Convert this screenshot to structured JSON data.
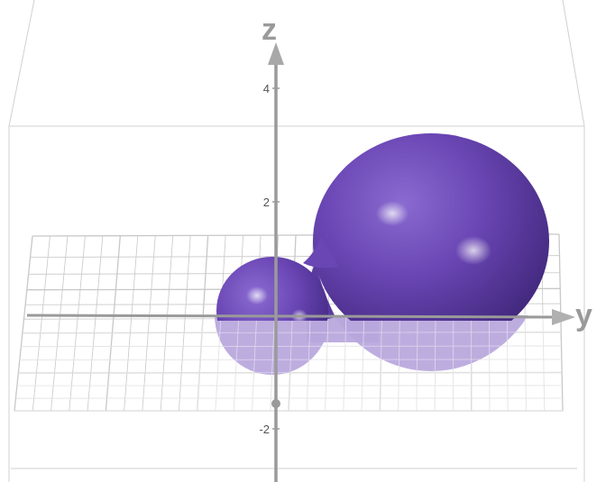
{
  "axes": {
    "z_label": "z",
    "y_label": "y",
    "z_ticks": [
      {
        "value": 4,
        "label": "4"
      },
      {
        "value": 2,
        "label": "2"
      },
      {
        "value": -2,
        "label": "-2"
      }
    ]
  },
  "surface": {
    "color_top": "#6a46b4",
    "color_below_plane": "#b7a6dc",
    "grid_color": "#c8c8c8",
    "axis_color": "#9a9a9a"
  }
}
